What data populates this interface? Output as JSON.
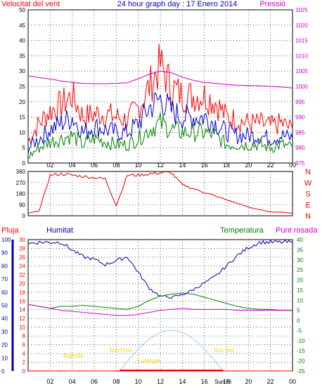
{
  "title": "24 hour graph day : 17 Enero 2014",
  "colors": {
    "wind_gust": "#ff0000",
    "wind_avg": "#0000cc",
    "wind_min": "#008000",
    "pressure": "#cc00cc",
    "direction": "#dd0000",
    "humidity": "#0000aa",
    "temperature": "#008000",
    "dewpoint": "#cc00cc",
    "rain": "#ff0000",
    "sun": "#99ccff",
    "sun_labels": "#ffd700"
  },
  "chart_data": [
    {
      "type": "line",
      "name": "wind-pressure",
      "title": "24 hour graph day : 17 Enero 2014",
      "left_label": "Velocitat del vent",
      "right_label": "Pressió",
      "x_ticks": [
        "02",
        "04",
        "06",
        "08",
        "10",
        "12",
        "14",
        "16",
        "18",
        "20",
        "22",
        "00"
      ],
      "left_axis": {
        "min": 0,
        "max": 50,
        "ticks": [
          0,
          5,
          10,
          15,
          20,
          25,
          30,
          35,
          40,
          45,
          50
        ]
      },
      "right_axis": {
        "min": 975,
        "max": 1025,
        "ticks": [
          975,
          980,
          985,
          990,
          995,
          1000,
          1005,
          1010,
          1015,
          1020,
          1025
        ]
      },
      "grid": true,
      "x_hours": [
        0,
        1,
        2,
        3,
        4,
        5,
        6,
        7,
        8,
        9,
        10,
        11,
        12,
        13,
        14,
        15,
        16,
        17,
        18,
        19,
        20,
        21,
        22,
        23,
        24
      ],
      "series": [
        {
          "name": "gust",
          "axis": "left",
          "values": [
            7,
            13,
            17,
            19,
            22,
            15,
            16,
            16,
            15,
            14,
            18,
            25,
            32,
            25,
            22,
            22,
            22,
            20,
            15,
            14,
            13,
            13,
            12,
            13,
            11
          ]
        },
        {
          "name": "average",
          "axis": "left",
          "values": [
            5,
            8,
            11,
            13,
            15,
            10,
            12,
            11,
            10,
            10,
            13,
            18,
            21,
            17,
            15,
            15,
            15,
            13,
            10,
            9,
            9,
            9,
            8,
            9,
            8
          ]
        },
        {
          "name": "min",
          "axis": "left",
          "values": [
            2,
            5,
            7,
            8,
            9,
            6,
            8,
            7,
            6,
            6,
            8,
            11,
            13,
            11,
            10,
            10,
            10,
            9,
            6,
            6,
            6,
            6,
            5,
            6,
            5
          ]
        },
        {
          "name": "pressure",
          "axis": "right",
          "values": [
            1003.5,
            1002.9,
            1002.4,
            1001.8,
            1001.3,
            1001.0,
            1000.9,
            1000.9,
            1001.0,
            1001.2,
            1002.5,
            1004.0,
            1005.0,
            1004.5,
            1003.0,
            1002.0,
            1001.3,
            1001.0,
            1000.6,
            1000.4,
            1000.3,
            1000.2,
            1000.0,
            999.8,
            999.5
          ]
        }
      ]
    },
    {
      "type": "line",
      "name": "wind-direction",
      "direction_labels": [
        "N",
        "W",
        "S",
        "E",
        "N"
      ],
      "left_axis": {
        "min": 0,
        "max": 360,
        "ticks": [
          0,
          90,
          180,
          270,
          360
        ]
      },
      "x_ticks": [
        "02",
        "04",
        "06",
        "08",
        "10",
        "12",
        "14",
        "16",
        "18",
        "20",
        "22",
        "00"
      ],
      "x_hours": [
        0,
        1,
        2,
        3,
        4,
        5,
        6,
        7,
        8,
        9,
        10,
        11,
        12,
        13,
        14,
        15,
        16,
        17,
        18,
        19,
        20,
        21,
        22,
        23,
        24
      ],
      "series": [
        {
          "name": "direction",
          "values": [
            20,
            40,
            330,
            340,
            330,
            320,
            310,
            300,
            80,
            330,
            330,
            340,
            350,
            350,
            250,
            220,
            190,
            160,
            130,
            100,
            70,
            50,
            30,
            30,
            20
          ]
        }
      ]
    },
    {
      "type": "line",
      "name": "temp-humidity-rain",
      "legend": [
        "Pluja",
        "Humitat",
        "Temperatura",
        "Punt rosada"
      ],
      "humidity_axis": {
        "min": 0,
        "max": 100,
        "ticks": [
          0,
          10,
          20,
          30,
          40,
          50,
          60,
          70,
          80,
          90,
          100
        ]
      },
      "rain_axis": {
        "min": 0,
        "max": 30,
        "ticks": [
          0,
          2,
          4,
          6,
          8,
          10,
          12,
          14,
          16,
          18,
          20,
          22,
          24,
          26,
          28,
          30
        ]
      },
      "temp_axis": {
        "min": -25,
        "max": 40,
        "ticks": [
          -25,
          -20,
          -15,
          -10,
          -5,
          0,
          5,
          10,
          15,
          20,
          25,
          30,
          35,
          40
        ]
      },
      "x_ticks": [
        "02",
        "04",
        "06",
        "08",
        "10",
        "12",
        "14",
        "16",
        "18",
        "20",
        "22",
        "00"
      ],
      "x_hours": [
        0,
        1,
        2,
        3,
        4,
        5,
        6,
        7,
        8,
        9,
        10,
        11,
        12,
        13,
        14,
        15,
        16,
        17,
        18,
        19,
        20,
        21,
        22,
        23,
        24
      ],
      "series": [
        {
          "name": "Humitat",
          "axis": "humidity",
          "values": [
            97,
            98,
            98,
            98,
            92,
            87,
            85,
            81,
            84,
            87,
            75,
            63,
            57,
            56,
            58,
            62,
            67,
            72,
            80,
            88,
            94,
            98,
            98,
            98,
            98
          ]
        },
        {
          "name": "Temperatura",
          "axis": "temp",
          "values": [
            8,
            7,
            6,
            7,
            7,
            7.5,
            7,
            6.5,
            6,
            5.5,
            7,
            10,
            12,
            13,
            13.5,
            13,
            11.5,
            10,
            8.5,
            7,
            6,
            5.5,
            5.5,
            5,
            5
          ]
        },
        {
          "name": "Punt rosada",
          "axis": "temp",
          "values": [
            8,
            7,
            6,
            5,
            4.5,
            4,
            3.5,
            3,
            2.5,
            2.5,
            3,
            4,
            5,
            5.5,
            6,
            5.5,
            5.5,
            5.5,
            5.5,
            5,
            5,
            5,
            5,
            5,
            5
          ]
        },
        {
          "name": "Pluja",
          "axis": "rain",
          "values": [
            0,
            0,
            0,
            0,
            0,
            0,
            0,
            0,
            0,
            0,
            0,
            0,
            0,
            0,
            0,
            0,
            0,
            0,
            0,
            0,
            0,
            0,
            0,
            0,
            0
          ]
        }
      ],
      "sun": {
        "rise_hour": 8.3,
        "set_hour": 17.7,
        "max_elevation": 31
      },
      "annotations": [
        "Sun Rise",
        "Sun Set",
        "Sun Hi",
        "Bigitude",
        "Lowitude"
      ]
    }
  ]
}
